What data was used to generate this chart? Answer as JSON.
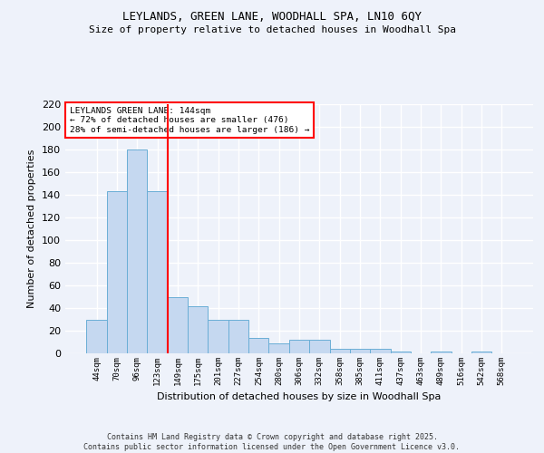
{
  "title1": "LEYLANDS, GREEN LANE, WOODHALL SPA, LN10 6QY",
  "title2": "Size of property relative to detached houses in Woodhall Spa",
  "xlabel": "Distribution of detached houses by size in Woodhall Spa",
  "ylabel": "Number of detached properties",
  "bar_labels": [
    "44sqm",
    "70sqm",
    "96sqm",
    "123sqm",
    "149sqm",
    "175sqm",
    "201sqm",
    "227sqm",
    "254sqm",
    "280sqm",
    "306sqm",
    "332sqm",
    "358sqm",
    "385sqm",
    "411sqm",
    "437sqm",
    "463sqm",
    "489sqm",
    "516sqm",
    "542sqm",
    "568sqm"
  ],
  "bar_values": [
    30,
    143,
    180,
    143,
    50,
    42,
    30,
    30,
    14,
    9,
    12,
    12,
    4,
    4,
    4,
    2,
    0,
    2,
    0,
    2,
    0
  ],
  "bar_color": "#c5d8f0",
  "bar_edge_color": "#6aaed6",
  "vline_color": "red",
  "annotation_text": "LEYLANDS GREEN LANE: 144sqm\n← 72% of detached houses are smaller (476)\n28% of semi-detached houses are larger (186) →",
  "annotation_box_color": "white",
  "annotation_box_edge": "red",
  "ylim": [
    0,
    220
  ],
  "yticks": [
    0,
    20,
    40,
    60,
    80,
    100,
    120,
    140,
    160,
    180,
    200,
    220
  ],
  "background_color": "#eef2fa",
  "grid_color": "white",
  "footer_text": "Contains HM Land Registry data © Crown copyright and database right 2025.\nContains public sector information licensed under the Open Government Licence v3.0."
}
